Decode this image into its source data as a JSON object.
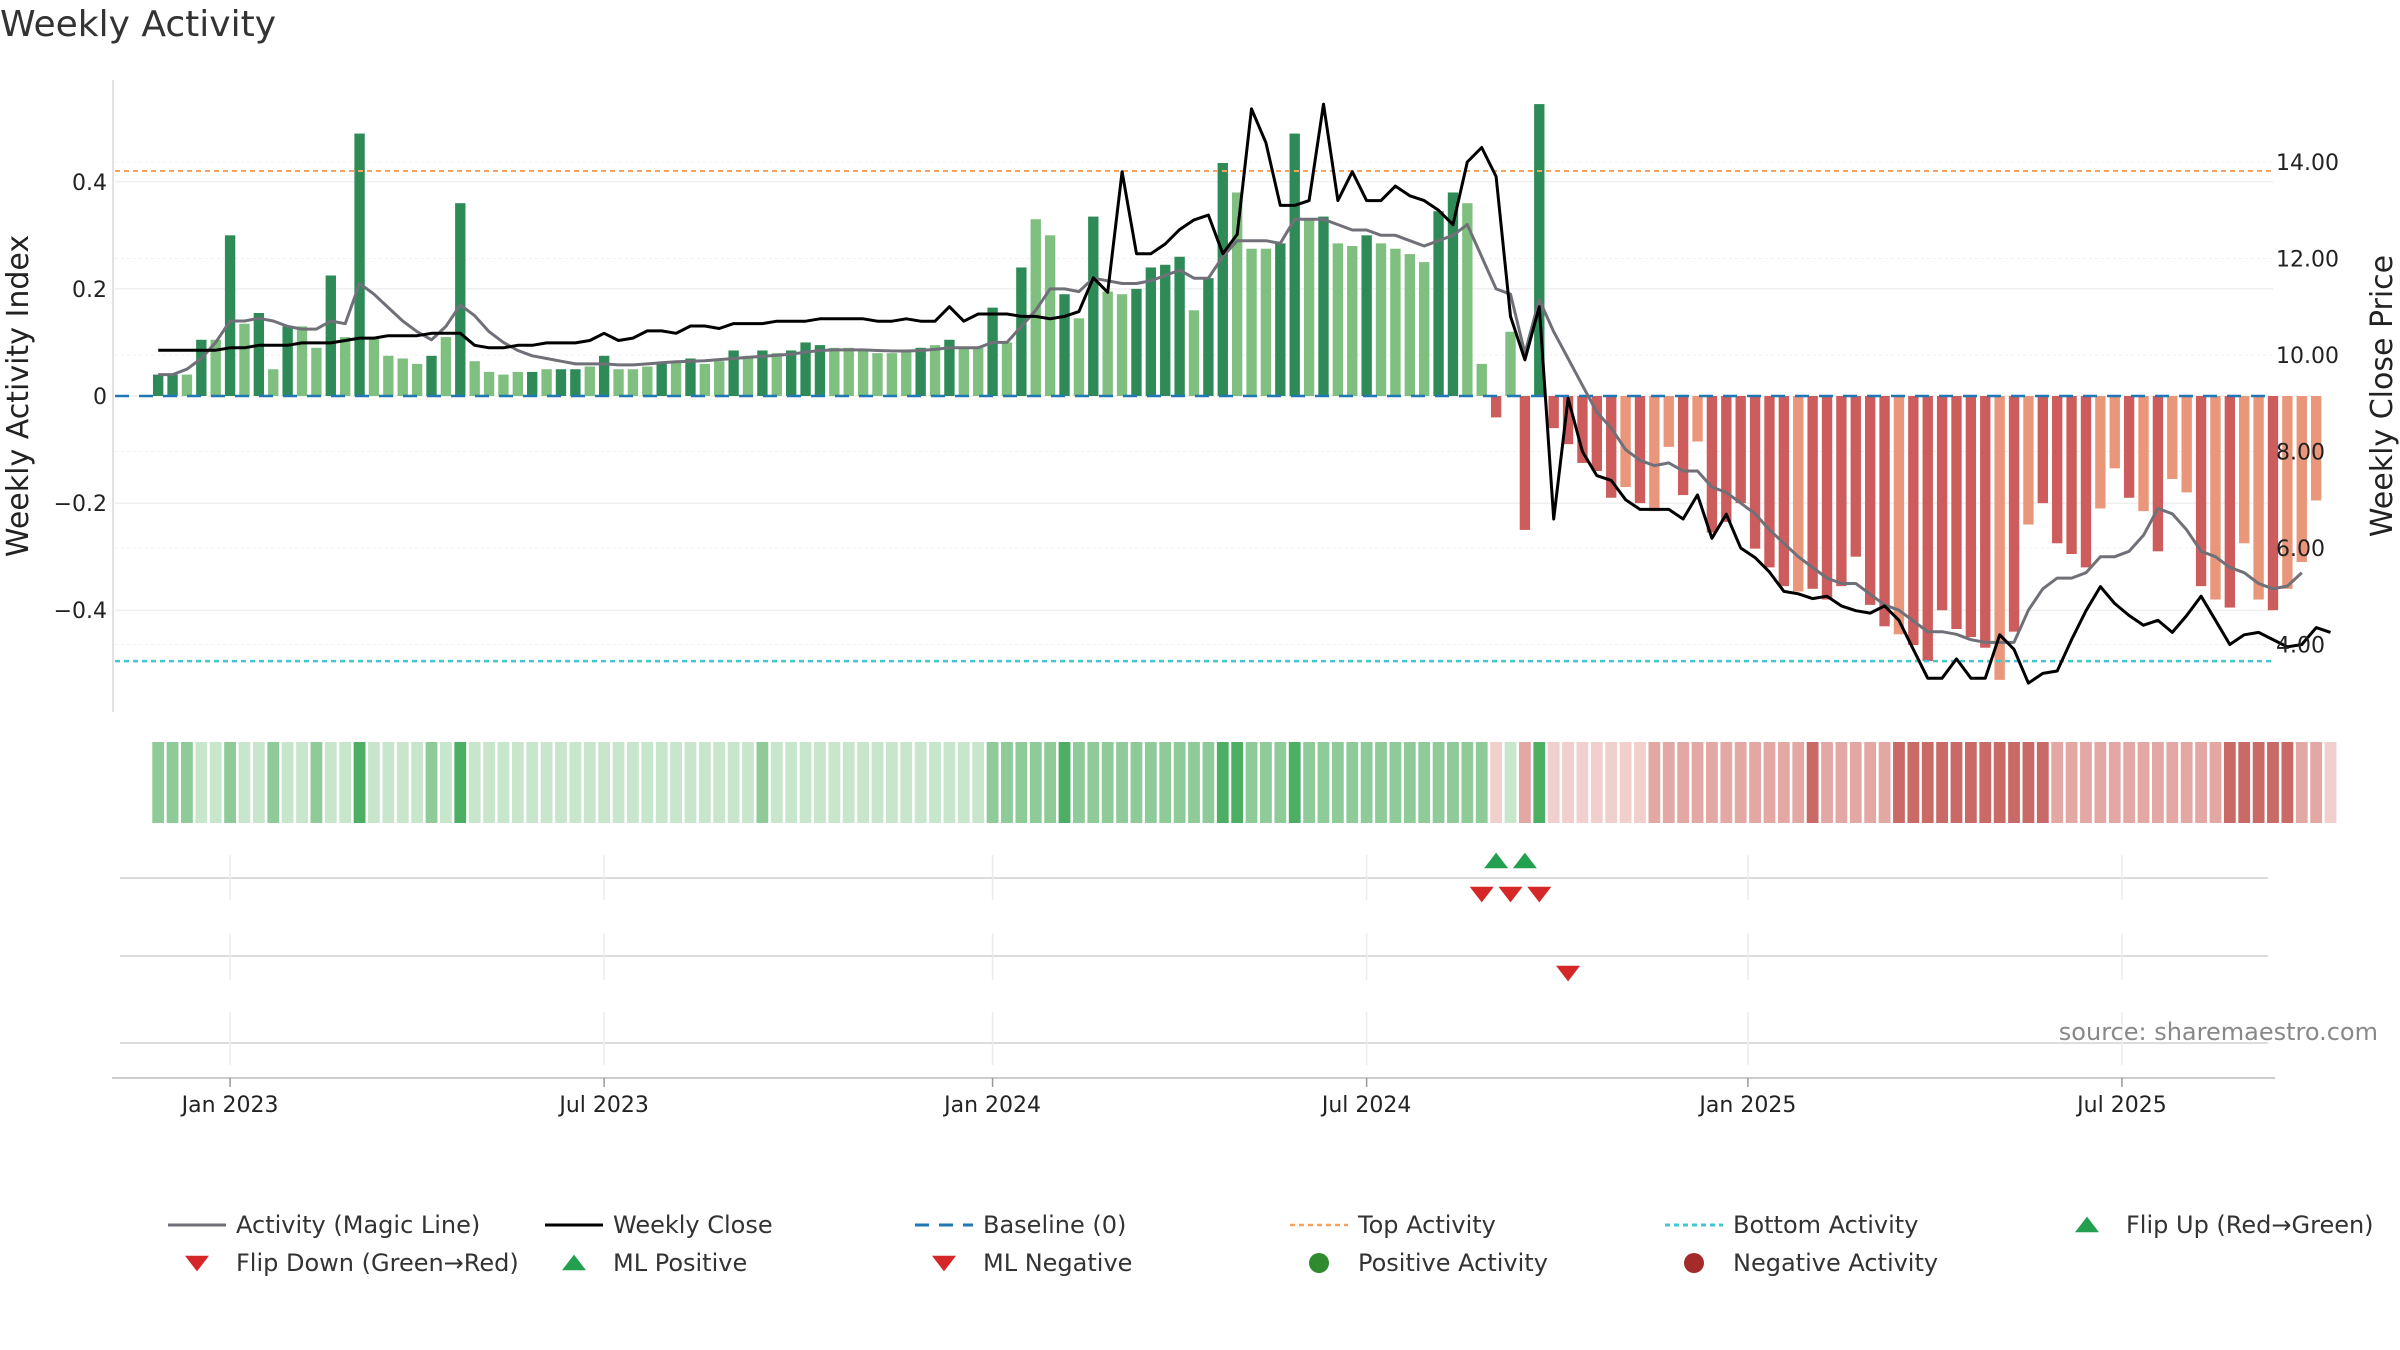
{
  "title": "Weekly Activity",
  "source": "source: sharemaestro.com",
  "colors": {
    "pos_strong": "#2e8b57",
    "pos_light": "#7fbf7f",
    "neg_strong": "#cd5c5c",
    "neg_light": "#e9967a",
    "magic_line": "#707078",
    "close_line": "#000000",
    "baseline": "#1f77b4",
    "top_line": "#f4a460",
    "bottom_line": "#40c8d0",
    "flip_up": "#22a050",
    "flip_down": "#d62728"
  },
  "chart_data": {
    "type": "bar",
    "title": "Weekly Activity",
    "ylabel": "Weekly Activity Index",
    "ylabel_right": "Weekly Close Price",
    "ylim": [
      -0.59,
      0.59
    ],
    "ylim_right": [
      2.6,
      15.7
    ],
    "yticks": [
      {
        "v": 0.4,
        "label": "0.4"
      },
      {
        "v": 0.2,
        "label": "0.2"
      },
      {
        "v": 0,
        "label": "0"
      },
      {
        "v": -0.2,
        "label": "−0.2"
      },
      {
        "v": -0.4,
        "label": "−0.4"
      }
    ],
    "yticks_right": [
      {
        "v": 14,
        "label": "14.00"
      },
      {
        "v": 12,
        "label": "12.00"
      },
      {
        "v": 10,
        "label": "10.00"
      },
      {
        "v": 8,
        "label": "8.00"
      },
      {
        "v": 6,
        "label": "6.00"
      },
      {
        "v": 4,
        "label": "4.00"
      }
    ],
    "x_range": [
      -3,
      147
    ],
    "xticks": [
      {
        "w": 5,
        "label": "Jan 2023"
      },
      {
        "w": 31,
        "label": "Jul 2023"
      },
      {
        "w": 58,
        "label": "Jan 2024"
      },
      {
        "w": 84,
        "label": "Jul 2024"
      },
      {
        "w": 110.5,
        "label": "Jan 2025"
      },
      {
        "w": 136.5,
        "label": "Jul 2025"
      }
    ],
    "top_activity": 0.42,
    "bottom_activity": -0.495,
    "bar_values": [
      0.04,
      0.04,
      0.04,
      0.105,
      0.105,
      0.3,
      0.135,
      0.155,
      0.05,
      0.13,
      0.13,
      0.09,
      0.225,
      0.11,
      0.49,
      0.11,
      0.075,
      0.07,
      0.06,
      0.075,
      0.11,
      0.36,
      0.065,
      0.045,
      0.04,
      0.045,
      0.045,
      0.05,
      0.05,
      0.05,
      0.055,
      0.075,
      0.05,
      0.05,
      0.055,
      0.06,
      0.065,
      0.07,
      0.06,
      0.065,
      0.085,
      0.075,
      0.085,
      0.08,
      0.085,
      0.1,
      0.095,
      0.09,
      0.09,
      0.085,
      0.08,
      0.08,
      0.085,
      0.09,
      0.095,
      0.105,
      0.09,
      0.09,
      0.165,
      0.1,
      0.24,
      0.33,
      0.3,
      0.19,
      0.145,
      0.335,
      0.195,
      0.19,
      0.2,
      0.24,
      0.245,
      0.26,
      0.16,
      0.22,
      0.435,
      0.38,
      0.275,
      0.275,
      0.285,
      0.49,
      0.33,
      0.335,
      0.285,
      0.28,
      0.3,
      0.285,
      0.275,
      0.265,
      0.25,
      0.345,
      0.38,
      0.36,
      0.06,
      -0.04,
      0.12,
      -0.25,
      0.545,
      -0.06,
      -0.09,
      -0.125,
      -0.14,
      -0.19,
      -0.17,
      -0.2,
      -0.215,
      -0.095,
      -0.185,
      -0.085,
      -0.255,
      -0.235,
      -0.2,
      -0.285,
      -0.32,
      -0.355,
      -0.365,
      -0.36,
      -0.38,
      -0.355,
      -0.3,
      -0.39,
      -0.43,
      -0.445,
      -0.465,
      -0.495,
      -0.4,
      -0.435,
      -0.45,
      -0.47,
      -0.53,
      -0.44,
      -0.24,
      -0.2,
      -0.275,
      -0.295,
      -0.32,
      -0.21,
      -0.135,
      -0.19,
      -0.215,
      -0.29,
      -0.155,
      -0.18,
      -0.355,
      -0.38,
      -0.395,
      -0.275,
      -0.38,
      -0.4,
      -0.36,
      -0.31,
      -0.195
    ],
    "bar_strength": [
      1,
      1,
      0,
      1,
      0,
      1,
      0,
      1,
      0,
      1,
      0,
      0,
      1,
      0,
      1,
      0,
      0,
      0,
      0,
      1,
      0,
      1,
      0,
      0,
      0,
      0,
      1,
      0,
      1,
      1,
      0,
      1,
      0,
      0,
      0,
      1,
      0,
      1,
      0,
      0,
      1,
      0,
      1,
      0,
      1,
      1,
      1,
      0,
      0,
      0,
      0,
      0,
      0,
      1,
      0,
      1,
      0,
      0,
      1,
      0,
      1,
      0,
      0,
      1,
      0,
      1,
      0,
      0,
      1,
      1,
      1,
      1,
      0,
      1,
      1,
      0,
      0,
      0,
      1,
      1,
      0,
      1,
      0,
      0,
      1,
      0,
      0,
      0,
      0,
      1,
      1,
      0,
      0,
      1,
      0,
      1,
      1,
      1,
      1,
      1,
      1,
      1,
      0,
      1,
      0,
      0,
      1,
      0,
      1,
      1,
      1,
      1,
      1,
      1,
      0,
      1,
      1,
      1,
      1,
      1,
      1,
      0,
      1,
      1,
      1,
      1,
      1,
      1,
      0,
      1,
      0,
      1,
      1,
      1,
      1,
      0,
      0,
      1,
      0,
      1,
      0,
      0,
      1,
      0,
      1,
      0,
      0,
      1,
      0,
      0
    ],
    "series": [
      {
        "name": "Activity (Magic Line)",
        "values": [
          0.04,
          0.04,
          0.05,
          0.07,
          0.1,
          0.14,
          0.14,
          0.145,
          0.14,
          0.13,
          0.125,
          0.125,
          0.14,
          0.135,
          0.21,
          0.19,
          0.165,
          0.14,
          0.12,
          0.105,
          0.13,
          0.17,
          0.15,
          0.12,
          0.1,
          0.085,
          0.075,
          0.07,
          0.065,
          0.06,
          0.06,
          0.06,
          0.058,
          0.058,
          0.06,
          0.062,
          0.064,
          0.065,
          0.066,
          0.068,
          0.07,
          0.072,
          0.074,
          0.076,
          0.078,
          0.082,
          0.085,
          0.086,
          0.086,
          0.086,
          0.085,
          0.084,
          0.084,
          0.085,
          0.087,
          0.09,
          0.09,
          0.09,
          0.1,
          0.1,
          0.13,
          0.16,
          0.2,
          0.2,
          0.195,
          0.22,
          0.215,
          0.21,
          0.21,
          0.215,
          0.225,
          0.235,
          0.22,
          0.22,
          0.26,
          0.29,
          0.29,
          0.29,
          0.285,
          0.33,
          0.33,
          0.33,
          0.32,
          0.31,
          0.31,
          0.3,
          0.3,
          0.29,
          0.28,
          0.29,
          0.3,
          0.32,
          0.26,
          0.2,
          0.19,
          0.08,
          0.18,
          0.12,
          0.07,
          0.02,
          -0.03,
          -0.06,
          -0.1,
          -0.12,
          -0.13,
          -0.125,
          -0.14,
          -0.14,
          -0.17,
          -0.18,
          -0.2,
          -0.22,
          -0.25,
          -0.275,
          -0.3,
          -0.32,
          -0.34,
          -0.35,
          -0.35,
          -0.37,
          -0.39,
          -0.4,
          -0.42,
          -0.44,
          -0.44,
          -0.445,
          -0.455,
          -0.46,
          -0.46,
          -0.46,
          -0.4,
          -0.36,
          -0.34,
          -0.34,
          -0.33,
          -0.3,
          -0.3,
          -0.29,
          -0.26,
          -0.21,
          -0.22,
          -0.25,
          -0.29,
          -0.3,
          -0.32,
          -0.33,
          -0.35,
          -0.36,
          -0.355,
          -0.33
        ]
      },
      {
        "name": "Weekly Close",
        "axis": "right",
        "values": [
          10.1,
          10.1,
          10.1,
          10.1,
          10.1,
          10.15,
          10.15,
          10.2,
          10.2,
          10.2,
          10.25,
          10.25,
          10.25,
          10.3,
          10.35,
          10.35,
          10.4,
          10.4,
          10.4,
          10.45,
          10.45,
          10.45,
          10.2,
          10.15,
          10.15,
          10.2,
          10.2,
          10.25,
          10.25,
          10.25,
          10.3,
          10.45,
          10.3,
          10.35,
          10.5,
          10.5,
          10.45,
          10.6,
          10.6,
          10.55,
          10.65,
          10.65,
          10.65,
          10.7,
          10.7,
          10.7,
          10.75,
          10.75,
          10.75,
          10.75,
          10.7,
          10.7,
          10.75,
          10.7,
          10.7,
          11,
          10.7,
          10.85,
          10.85,
          10.85,
          10.8,
          10.8,
          10.75,
          10.8,
          10.9,
          11.6,
          11.3,
          13.8,
          12.1,
          12.1,
          12.3,
          12.6,
          12.8,
          12.9,
          12.1,
          12.5,
          15.1,
          14.4,
          13.1,
          13.1,
          13.2,
          15.2,
          13.2,
          13.8,
          13.2,
          13.2,
          13.5,
          13.3,
          13.2,
          13.0,
          12.7,
          14.0,
          14.3,
          13.7,
          10.8,
          9.9,
          11.0,
          6.6,
          9.1,
          8.0,
          7.5,
          7.4,
          7.0,
          6.8,
          6.8,
          6.8,
          6.6,
          7.1,
          6.2,
          6.7,
          6.0,
          5.8,
          5.5,
          5.1,
          5.05,
          4.95,
          5.0,
          4.8,
          4.7,
          4.65,
          4.8,
          4.5,
          3.9,
          3.3,
          3.3,
          3.7,
          3.3,
          3.3,
          4.2,
          3.9,
          3.2,
          3.4,
          3.45,
          4.1,
          4.7,
          5.2,
          4.85,
          4.6,
          4.4,
          4.5,
          4.25,
          4.6,
          5.0,
          4.5,
          4.0,
          4.2,
          4.25,
          4.1,
          3.95,
          4.0,
          4.35,
          4.25
        ]
      }
    ],
    "flip_up_weeks": [
      93,
      95
    ],
    "flip_down_weeks": [
      92,
      94,
      96
    ],
    "ml_negative_weeks": [
      98
    ],
    "heat_strip": [
      1,
      1,
      1,
      0,
      0,
      1,
      0,
      0,
      1,
      0,
      0,
      1,
      0,
      0,
      2,
      0,
      0,
      0,
      0,
      1,
      0,
      2,
      0,
      0,
      0,
      0,
      0,
      0,
      0,
      0,
      0,
      0,
      0,
      0,
      0,
      0,
      0,
      0,
      0,
      0,
      0,
      0,
      1,
      0,
      0,
      0,
      0,
      0,
      0,
      0,
      0,
      0,
      0,
      0,
      0,
      0,
      0,
      0,
      1,
      1,
      1,
      1,
      1,
      2,
      1,
      1,
      1,
      1,
      1,
      1,
      1,
      1,
      1,
      1,
      2,
      2,
      1,
      1,
      1,
      2,
      1,
      1,
      1,
      1,
      1,
      1,
      1,
      1,
      1,
      1,
      1,
      1,
      1,
      0,
      0,
      1,
      2,
      0,
      0,
      0,
      0,
      0,
      0,
      0,
      1,
      1,
      1,
      1,
      1,
      1,
      1,
      1,
      1,
      1,
      1,
      2,
      1,
      1,
      1,
      1,
      1,
      2,
      2,
      2,
      2,
      2,
      2,
      2,
      2,
      2,
      2,
      2,
      1,
      1,
      1,
      1,
      1,
      1,
      1,
      1,
      1,
      1,
      1,
      1,
      2,
      2,
      2,
      2,
      2,
      1,
      1,
      0
    ]
  },
  "legend": [
    {
      "label": "Activity (Magic Line)",
      "icon": "line-solid-gray"
    },
    {
      "label": "Weekly Close",
      "icon": "line-solid-black"
    },
    {
      "label": "Baseline (0)",
      "icon": "line-dashed-blue"
    },
    {
      "label": "Top Activity",
      "icon": "line-dotted-orange"
    },
    {
      "label": "Bottom Activity",
      "icon": "line-dotted-cyan"
    },
    {
      "label": "Flip Up (Red→Green)",
      "icon": "triangle-up-green"
    },
    {
      "label": "Flip Down (Green→Red)",
      "icon": "triangle-down-red"
    },
    {
      "label": "ML Positive",
      "icon": "triangle-up-green"
    },
    {
      "label": "ML Negative",
      "icon": "triangle-down-red"
    },
    {
      "label": "Positive Activity",
      "icon": "circle-green"
    },
    {
      "label": "Negative Activity",
      "icon": "circle-red"
    }
  ]
}
